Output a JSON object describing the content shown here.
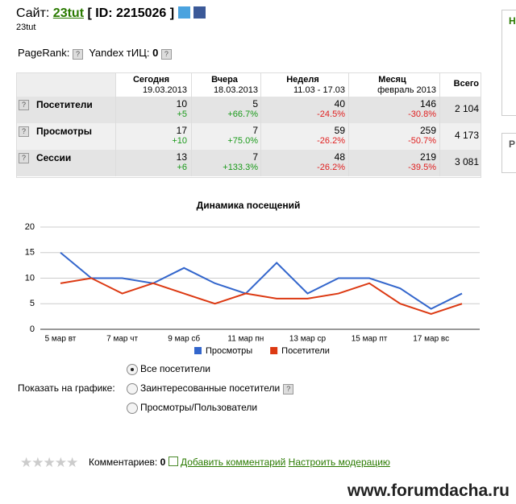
{
  "header": {
    "site_label": "Сайт:",
    "site_name": "23tut",
    "id_text": "[ ID: 2215026 ]",
    "subtitle": "23tut"
  },
  "rank": {
    "pagerank_label": "PageRank:",
    "yandex_label": "Yandex тИЦ:",
    "yandex_value": "0"
  },
  "table": {
    "columns": [
      {
        "title": "Сегодня",
        "sub": "19.03.2013"
      },
      {
        "title": "Вчера",
        "sub": "18.03.2013"
      },
      {
        "title": "Неделя",
        "sub": "11.03 - 17.03"
      },
      {
        "title": "Месяц",
        "sub": "февраль 2013"
      },
      {
        "title": "Всего"
      }
    ],
    "rows": [
      {
        "name": "Посетители",
        "cells": [
          [
            "10",
            "+5"
          ],
          [
            "5",
            "+66.7%"
          ],
          [
            "40",
            "-24.5%"
          ],
          [
            "146",
            "-30.8%"
          ]
        ],
        "total": "2 104"
      },
      {
        "name": "Просмотры",
        "cells": [
          [
            "17",
            "+10"
          ],
          [
            "7",
            "+75.0%"
          ],
          [
            "59",
            "-26.2%"
          ],
          [
            "259",
            "-50.7%"
          ]
        ],
        "total": "4 173"
      },
      {
        "name": "Сессии",
        "cells": [
          [
            "13",
            "+6"
          ],
          [
            "7",
            "+133.3%"
          ],
          [
            "48",
            "-26.2%"
          ],
          [
            "219",
            "-39.5%"
          ]
        ],
        "total": "3 081"
      }
    ]
  },
  "chart_data": {
    "type": "line",
    "title": "Динамика посещений",
    "categories": [
      "5 мар вт",
      null,
      "7 мар чт",
      null,
      "9 мар сб",
      null,
      "11 мар пн",
      null,
      "13 мар ср",
      null,
      "15 мар пт",
      null,
      "17 мар вс",
      null
    ],
    "series": [
      {
        "name": "Просмотры",
        "color": "#3366cc",
        "values": [
          15,
          10,
          10,
          9,
          12,
          9,
          7,
          13,
          7,
          10,
          10,
          8,
          4,
          7
        ]
      },
      {
        "name": "Посетители",
        "color": "#dc3912",
        "values": [
          9,
          10,
          7,
          9,
          7,
          5,
          7,
          6,
          6,
          7,
          9,
          5,
          3,
          5
        ]
      }
    ],
    "ylim": [
      0,
      20
    ],
    "yticks": [
      0,
      5,
      10,
      15,
      20
    ],
    "grid": true,
    "legend": "bottom"
  },
  "options": {
    "label": "Показать на графике:",
    "choices": [
      "Все посетители",
      "Заинтересованные посетители",
      "Просмотры/Пользователи"
    ],
    "selected": 0
  },
  "footer": {
    "comments_label": "Комментариев:",
    "comments_count": "0",
    "add_comment": "Добавить комментарий",
    "moderation": "Настроить модерацию"
  },
  "watermark": "www.forumdacha.ru",
  "sidebar": [
    "Н",
    "Р"
  ]
}
